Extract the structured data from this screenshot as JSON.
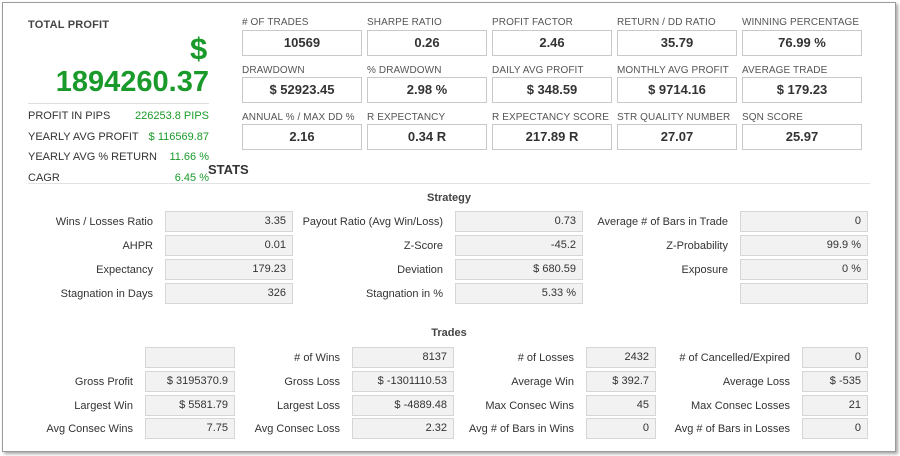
{
  "total_profit": {
    "label": "TOTAL PROFIT",
    "currency": "$",
    "value": "1894260.37"
  },
  "profit_details": [
    {
      "label": "PROFIT IN PIPS",
      "value": "226253.8 PIPS"
    },
    {
      "label": "YEARLY AVG PROFIT",
      "value": "$ 116569.87"
    },
    {
      "label": "YEARLY AVG % RETURN",
      "value": "11.66 %"
    },
    {
      "label": "CAGR",
      "value": "6.45 %"
    }
  ],
  "metrics": [
    {
      "label": "# OF TRADES",
      "value": "10569"
    },
    {
      "label": "SHARPE RATIO",
      "value": "0.26"
    },
    {
      "label": "PROFIT FACTOR",
      "value": "2.46"
    },
    {
      "label": "RETURN / DD RATIO",
      "value": "35.79"
    },
    {
      "label": "WINNING PERCENTAGE",
      "value": "76.99 %"
    },
    {
      "label": "DRAWDOWN",
      "value": "$ 52923.45"
    },
    {
      "label": "% DRAWDOWN",
      "value": "2.98 %"
    },
    {
      "label": "DAILY AVG PROFIT",
      "value": "$ 348.59"
    },
    {
      "label": "MONTHLY AVG PROFIT",
      "value": "$ 9714.16"
    },
    {
      "label": "AVERAGE TRADE",
      "value": "$ 179.23"
    },
    {
      "label": "ANNUAL % / MAX DD %",
      "value": "2.16"
    },
    {
      "label": "R EXPECTANCY",
      "value": "0.34 R"
    },
    {
      "label": "R EXPECTANCY SCORE",
      "value": "217.89 R"
    },
    {
      "label": "STR QUALITY NUMBER",
      "value": "27.07"
    },
    {
      "label": "SQN SCORE",
      "value": "25.97"
    }
  ],
  "stats_title": "STATS",
  "strategy": {
    "title": "Strategy",
    "rows": [
      [
        {
          "label": "Wins / Losses Ratio",
          "value": "3.35"
        },
        {
          "label": "Payout Ratio (Avg Win/Loss)",
          "value": "0.73"
        },
        {
          "label": "Average # of Bars in Trade",
          "value": "0"
        }
      ],
      [
        {
          "label": "AHPR",
          "value": "0.01"
        },
        {
          "label": "Z-Score",
          "value": "-45.2"
        },
        {
          "label": "Z-Probability",
          "value": "99.9 %"
        }
      ],
      [
        {
          "label": "Expectancy",
          "value": "179.23"
        },
        {
          "label": "Deviation",
          "value": "$ 680.59"
        },
        {
          "label": "Exposure",
          "value": "0 %"
        }
      ],
      [
        {
          "label": "Stagnation in Days",
          "value": "326"
        },
        {
          "label": "Stagnation in %",
          "value": "5.33 %"
        },
        {
          "label": "",
          "value": ""
        }
      ]
    ]
  },
  "trades": {
    "title": "Trades",
    "rows": [
      [
        {
          "label": "",
          "value": ""
        },
        {
          "label": "# of Wins",
          "value": "8137"
        },
        {
          "label": "# of Losses",
          "value": "2432"
        },
        {
          "label": "# of Cancelled/Expired",
          "value": "0"
        }
      ],
      [
        {
          "label": "Gross Profit",
          "value": "$ 3195370.9"
        },
        {
          "label": "Gross Loss",
          "value": "$ -1301110.53"
        },
        {
          "label": "Average Win",
          "value": "$ 392.7"
        },
        {
          "label": "Average Loss",
          "value": "$ -535"
        }
      ],
      [
        {
          "label": "Largest Win",
          "value": "$ 5581.79"
        },
        {
          "label": "Largest Loss",
          "value": "$ -4889.48"
        },
        {
          "label": "Max Consec Wins",
          "value": "45"
        },
        {
          "label": "Max Consec Losses",
          "value": "21"
        }
      ],
      [
        {
          "label": "Avg Consec Wins",
          "value": "7.75"
        },
        {
          "label": "Avg Consec Loss",
          "value": "2.32"
        },
        {
          "label": "Avg # of Bars in Wins",
          "value": "0"
        },
        {
          "label": "Avg # of Bars in Losses",
          "value": "0"
        }
      ]
    ]
  },
  "colors": {
    "profit_green": "#1a9a2a",
    "text": "#333333",
    "cell_bg": "#f2f2f2"
  }
}
